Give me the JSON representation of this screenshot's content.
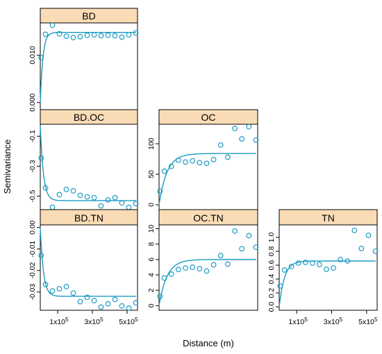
{
  "figure": {
    "ylabel": "Semivariance",
    "xlabel": "Distance (m)"
  },
  "colors": {
    "strip": "#f9dcb6",
    "points": "#1a9bc3",
    "curve": "#1a9bc3",
    "frame": "#000000"
  },
  "x_ticks": [
    {
      "label": "1x10",
      "exp": "5"
    },
    {
      "label": "3x10",
      "exp": "5"
    },
    {
      "label": "5x10",
      "exp": "5"
    }
  ],
  "chart_data": [
    {
      "type": "scatter",
      "title": "BD",
      "ylim": [
        -0.0015,
        0.0168
      ],
      "yticks": [
        "0.000",
        "0.010"
      ],
      "x": [
        5000,
        30000,
        70000,
        110000,
        150000,
        190000,
        230000,
        270000,
        310000,
        350000,
        390000,
        430000,
        470000,
        510000,
        550000
      ],
      "values": [
        0.0095,
        0.0144,
        0.0163,
        0.0145,
        0.014,
        0.0137,
        0.0139,
        0.0142,
        0.0143,
        0.0141,
        0.0142,
        0.0141,
        0.0138,
        0.0143,
        0.0147
      ],
      "fit": {
        "nugget": 0.0,
        "sill": 0.0148,
        "range": 15000
      }
    },
    {
      "type": "scatter",
      "title": "BD.OC",
      "ylim": [
        -0.59,
        -0.02
      ],
      "yticks": [
        "-0.1",
        "-0.3",
        "-0.5"
      ],
      "x": [
        5000,
        30000,
        70000,
        110000,
        150000,
        190000,
        230000,
        270000,
        310000,
        350000,
        390000,
        430000,
        470000,
        510000,
        550000
      ],
      "values": [
        -0.245,
        -0.445,
        -0.575,
        -0.49,
        -0.455,
        -0.465,
        -0.495,
        -0.505,
        -0.51,
        -0.565,
        -0.525,
        -0.51,
        -0.545,
        -0.575,
        -0.55
      ],
      "fit": {
        "nugget": -0.03,
        "sill": -0.53,
        "range": 18000
      }
    },
    {
      "type": "scatter",
      "title": "BD.TN",
      "ylim": [
        -0.0385,
        0.0012
      ],
      "yticks": [
        "0.00",
        "-0.01",
        "-0.02",
        "-0.03"
      ],
      "x": [
        5000,
        30000,
        70000,
        110000,
        150000,
        190000,
        230000,
        270000,
        310000,
        350000,
        390000,
        430000,
        470000,
        510000,
        550000
      ],
      "values": [
        -0.013,
        -0.0265,
        -0.0295,
        -0.0285,
        -0.0275,
        -0.0305,
        -0.0345,
        -0.0325,
        -0.034,
        -0.037,
        -0.0355,
        -0.0335,
        -0.0365,
        -0.0375,
        -0.035
      ],
      "fit": {
        "nugget": 0.0,
        "sill": -0.032,
        "range": 18000
      }
    },
    {
      "type": "scatter",
      "title": "OC",
      "ylim": [
        -8,
        132
      ],
      "yticks": [
        "0",
        "50",
        "100"
      ],
      "x": [
        5000,
        30000,
        70000,
        110000,
        150000,
        190000,
        230000,
        270000,
        310000,
        350000,
        390000,
        430000,
        470000,
        510000,
        550000
      ],
      "values": [
        22,
        55,
        63,
        73,
        70,
        72,
        69,
        68,
        74,
        98,
        78,
        125,
        108,
        128,
        106
      ],
      "fit": {
        "nugget": 0.0,
        "sill": 84,
        "range": 45000
      }
    },
    {
      "type": "scatter",
      "title": "OC.TN",
      "ylim": [
        -0.6,
        10.5
      ],
      "yticks": [
        "0",
        "2",
        "4",
        "6",
        "8",
        "10"
      ],
      "x": [
        5000,
        30000,
        70000,
        110000,
        150000,
        190000,
        230000,
        270000,
        310000,
        350000,
        390000,
        430000,
        470000,
        510000,
        550000
      ],
      "values": [
        1.2,
        3.6,
        4.1,
        4.7,
        4.9,
        5.0,
        4.8,
        4.5,
        5.3,
        6.5,
        5.4,
        9.7,
        7.4,
        9.1,
        7.6
      ],
      "fit": {
        "nugget": 0.0,
        "sill": 6.0,
        "range": 45000
      }
    },
    {
      "type": "scatter",
      "title": "TN",
      "ylim": [
        -0.05,
        1.18
      ],
      "yticks": [
        "0.0",
        "0.2",
        "0.4",
        "0.6",
        "0.8",
        "1.0"
      ],
      "x": [
        5000,
        30000,
        70000,
        110000,
        150000,
        190000,
        230000,
        270000,
        310000,
        350000,
        390000,
        430000,
        470000,
        510000,
        550000
      ],
      "values": [
        0.3,
        0.53,
        0.58,
        0.63,
        0.64,
        0.63,
        0.61,
        0.54,
        0.56,
        0.68,
        0.66,
        1.1,
        0.84,
        1.03,
        0.8
      ],
      "fit": {
        "nugget": 0.0,
        "sill": 0.66,
        "range": 30000
      }
    }
  ]
}
